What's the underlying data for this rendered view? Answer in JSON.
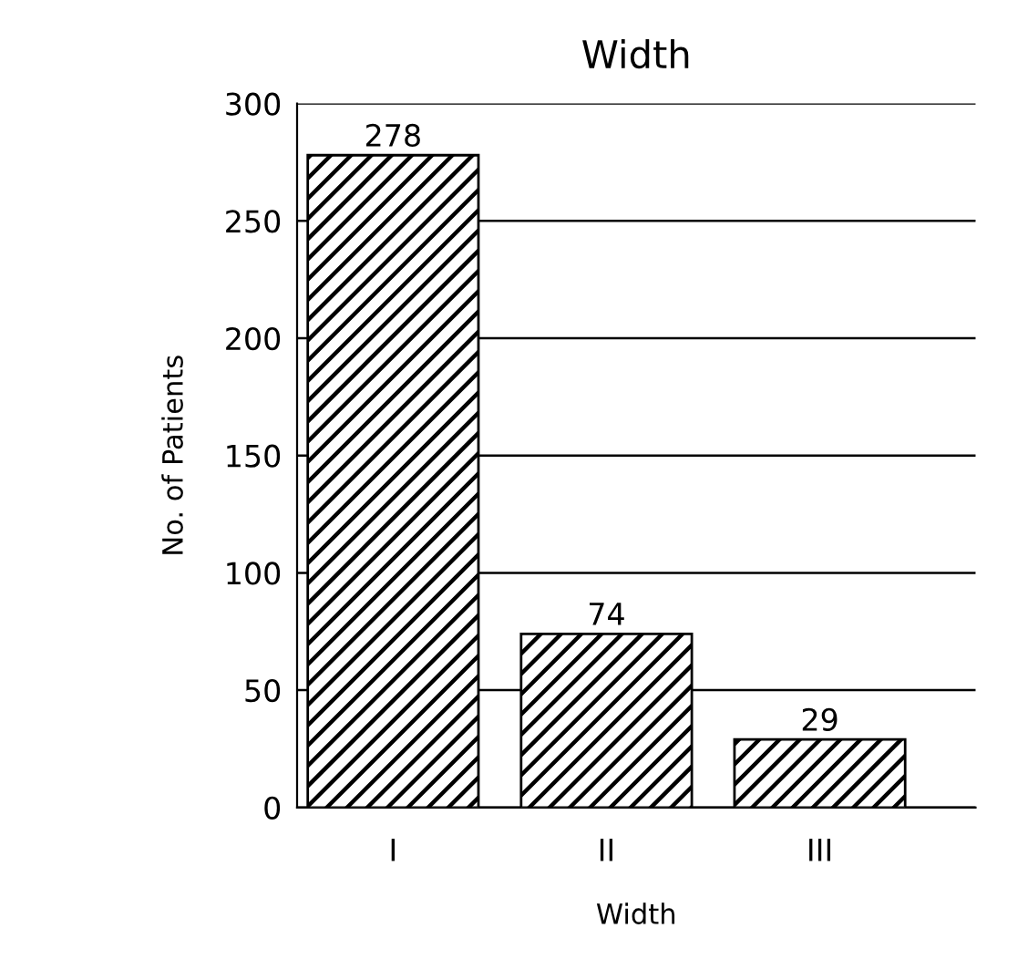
{
  "chart_data": {
    "type": "bar",
    "title": "Width",
    "xlabel": "Width",
    "ylabel": "No. of Patients",
    "categories": [
      "I",
      "II",
      "III"
    ],
    "values": [
      278,
      74,
      29
    ],
    "color": "#000000",
    "ylim": [
      0,
      300
    ],
    "yticks": [
      0,
      50,
      100,
      150,
      200,
      250,
      300
    ],
    "grid": "y",
    "data_labels": true
  }
}
